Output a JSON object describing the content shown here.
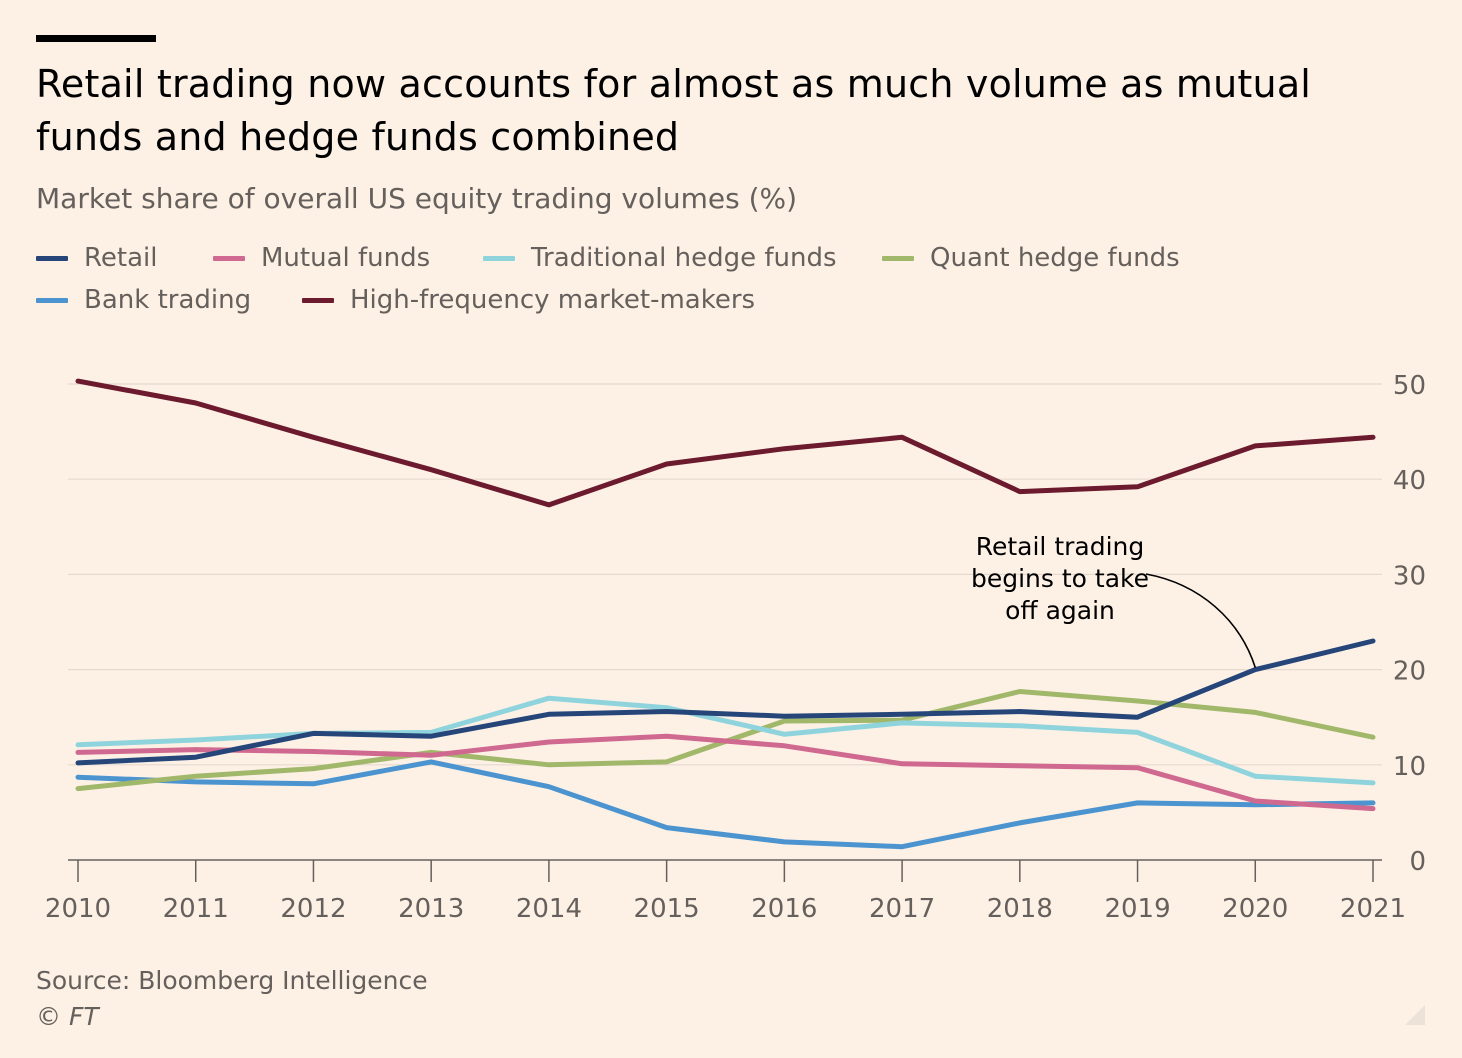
{
  "header": {
    "title": "Retail trading now accounts for almost as much volume as mutual funds and hedge funds combined",
    "subtitle": "Market share of overall US equity trading volumes (%)"
  },
  "footer": {
    "source": "Source: Bloomberg Intelligence",
    "copyright": "© FT"
  },
  "colors": {
    "background": "#fdf1e6",
    "grid": "#e6dacf",
    "axis": "#66605c",
    "annotation": "#000000"
  },
  "chart_data": {
    "type": "line",
    "title": "Retail trading now accounts for almost as much volume as mutual funds and hedge funds combined",
    "subtitle": "Market share of overall US equity trading volumes (%)",
    "x": [
      2010,
      2011,
      2012,
      2013,
      2014,
      2015,
      2016,
      2017,
      2018,
      2019,
      2020,
      2021
    ],
    "ylim": [
      0,
      50
    ],
    "yticks": [
      0,
      10,
      20,
      30,
      40,
      50
    ],
    "y_axis_side": "right",
    "grid": true,
    "legend_position": "top",
    "series": [
      {
        "name": "Retail",
        "color": "#26467a",
        "values": [
          10.2,
          10.8,
          13.3,
          13.0,
          15.3,
          15.6,
          15.1,
          15.3,
          15.6,
          15.0,
          20.0,
          23.0
        ]
      },
      {
        "name": "Mutual funds",
        "color": "#d0698f",
        "values": [
          11.3,
          11.6,
          11.4,
          11.0,
          12.4,
          13.0,
          12.0,
          10.1,
          9.9,
          9.7,
          6.2,
          5.4
        ]
      },
      {
        "name": "Traditional hedge funds",
        "color": "#8fd4dc",
        "values": [
          12.1,
          12.6,
          13.3,
          13.4,
          17.0,
          16.0,
          13.2,
          14.4,
          14.1,
          13.4,
          8.8,
          8.1
        ]
      },
      {
        "name": "Quant hedge funds",
        "color": "#a1b86b",
        "values": [
          7.5,
          8.8,
          9.6,
          11.3,
          10.0,
          10.3,
          14.6,
          14.7,
          17.7,
          16.7,
          15.5,
          12.9
        ]
      },
      {
        "name": "Bank trading",
        "color": "#4b94cf",
        "values": [
          8.7,
          8.2,
          8.0,
          10.3,
          7.7,
          3.4,
          1.9,
          1.4,
          3.9,
          6.0,
          5.8,
          6.0
        ]
      },
      {
        "name": "High-frequency market-makers",
        "color": "#6c1a2e",
        "values": [
          50.3,
          48.0,
          44.4,
          41.0,
          37.3,
          41.6,
          43.2,
          44.4,
          38.7,
          39.2,
          43.5,
          44.4
        ]
      }
    ],
    "annotations": [
      {
        "text_lines": [
          "Retail trading",
          "begins to take",
          "off again"
        ],
        "points_to": {
          "x": 2020,
          "y": 20.0
        }
      }
    ]
  }
}
